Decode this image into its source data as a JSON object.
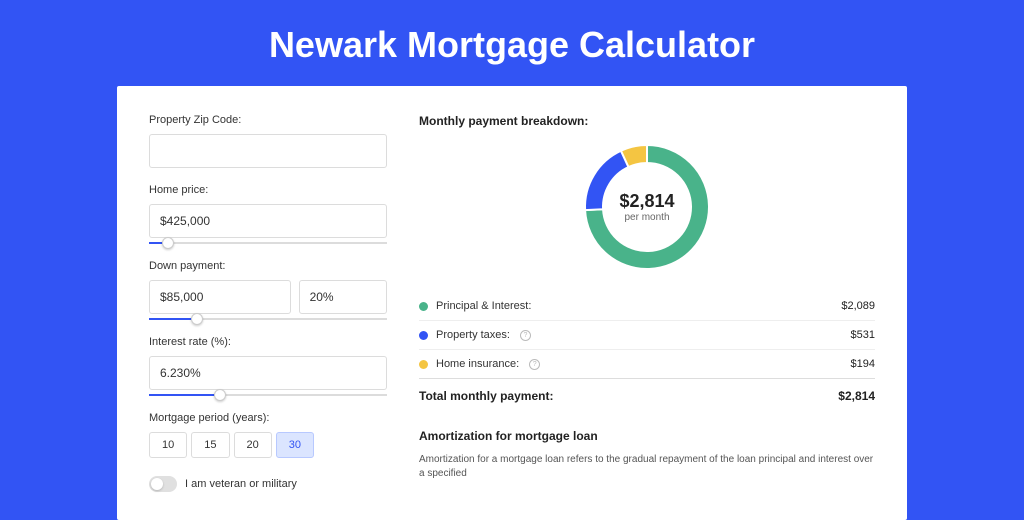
{
  "page": {
    "title": "Newark Mortgage Calculator",
    "background_color": "#3254f4",
    "card_background": "#ffffff"
  },
  "form": {
    "zip": {
      "label": "Property Zip Code:",
      "value": ""
    },
    "home_price": {
      "label": "Home price:",
      "value": "$425,000",
      "slider_pct": 8
    },
    "down_payment": {
      "label": "Down payment:",
      "amount": "$85,000",
      "percent": "20%",
      "slider_pct": 20
    },
    "interest": {
      "label": "Interest rate (%):",
      "value": "6.230%",
      "slider_pct": 30
    },
    "period": {
      "label": "Mortgage period (years):",
      "options": [
        "10",
        "15",
        "20",
        "30"
      ],
      "active_index": 3
    },
    "veteran": {
      "label": "I am veteran or military",
      "checked": false
    }
  },
  "breakdown": {
    "title": "Monthly payment breakdown:",
    "center_amount": "$2,814",
    "center_sub": "per month",
    "donut": {
      "ring_width": 18,
      "segments": [
        {
          "label": "Principal & Interest:",
          "value": "$2,089",
          "color": "#49b38a",
          "percent": 74.2
        },
        {
          "label": "Property taxes:",
          "value": "$531",
          "color": "#3254f4",
          "percent": 18.9,
          "has_info": true
        },
        {
          "label": "Home insurance:",
          "value": "$194",
          "color": "#f4c542",
          "percent": 6.9,
          "has_info": true
        }
      ]
    },
    "total": {
      "label": "Total monthly payment:",
      "value": "$2,814"
    }
  },
  "amortization": {
    "title": "Amortization for mortgage loan",
    "text": "Amortization for a mortgage loan refers to the gradual repayment of the loan principal and interest over a specified"
  }
}
